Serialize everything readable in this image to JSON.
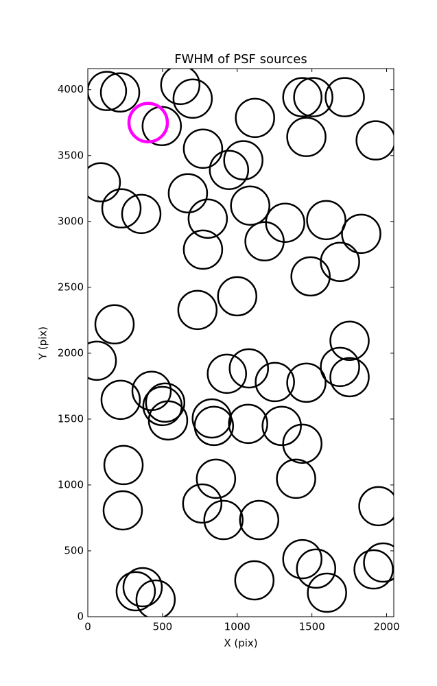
{
  "chart_data": {
    "type": "scatter",
    "title": "FWHM of PSF sources",
    "x_label": "X (pix)",
    "y_label": "Y (pix)",
    "xlim": [
      0,
      2048
    ],
    "ylim": [
      0,
      4160
    ],
    "xticks": [
      0,
      500,
      1000,
      1500,
      2000
    ],
    "yticks": [
      0,
      500,
      1000,
      1500,
      2000,
      2500,
      3000,
      3500,
      4000
    ],
    "series": [
      {
        "color": "#000000",
        "x": [
          128,
          216,
          619,
          702,
          1436,
          1509,
          1720,
          495,
          1119,
          1463,
          1927,
          771,
          1041,
          945,
          87,
          670,
          225,
          358,
          1087,
          803,
          1321,
          1596,
          1830,
          1183,
          771,
          1688,
          1491,
          1000,
          734,
          179,
          1752,
          60,
          1688,
          1078,
          931,
          1752,
          427,
          1252,
          1463,
          220,
          518,
          500,
          537,
          830,
          844,
          1073,
          1298,
          1436,
          239,
          858,
          1394,
          766,
          234,
          908,
          1147,
          1945,
          1436,
          1528,
          1977,
          1913,
          1115,
          367,
          321,
          1601,
          454
        ],
        "values": [
          3990,
          3979,
          4036,
          3932,
          3943,
          3943,
          3943,
          3724,
          3786,
          3641,
          3615,
          3552,
          3464,
          3391,
          3297,
          3214,
          3099,
          3057,
          3120,
          3021,
          2990,
          3010,
          2906,
          2849,
          2786,
          2693,
          2583,
          2432,
          2328,
          2219,
          2094,
          1943,
          1896,
          1885,
          1844,
          1818,
          1714,
          1781,
          1776,
          1646,
          1625,
          1599,
          1490,
          1505,
          1448,
          1464,
          1448,
          1313,
          1151,
          1047,
          1047,
          859,
          807,
          734,
          734,
          839,
          437,
          365,
          411,
          359,
          276,
          224,
          193,
          182,
          130
        ]
      },
      {
        "color": "#ff00ff",
        "x": [
          404
        ],
        "values": [
          3750
        ]
      }
    ]
  }
}
